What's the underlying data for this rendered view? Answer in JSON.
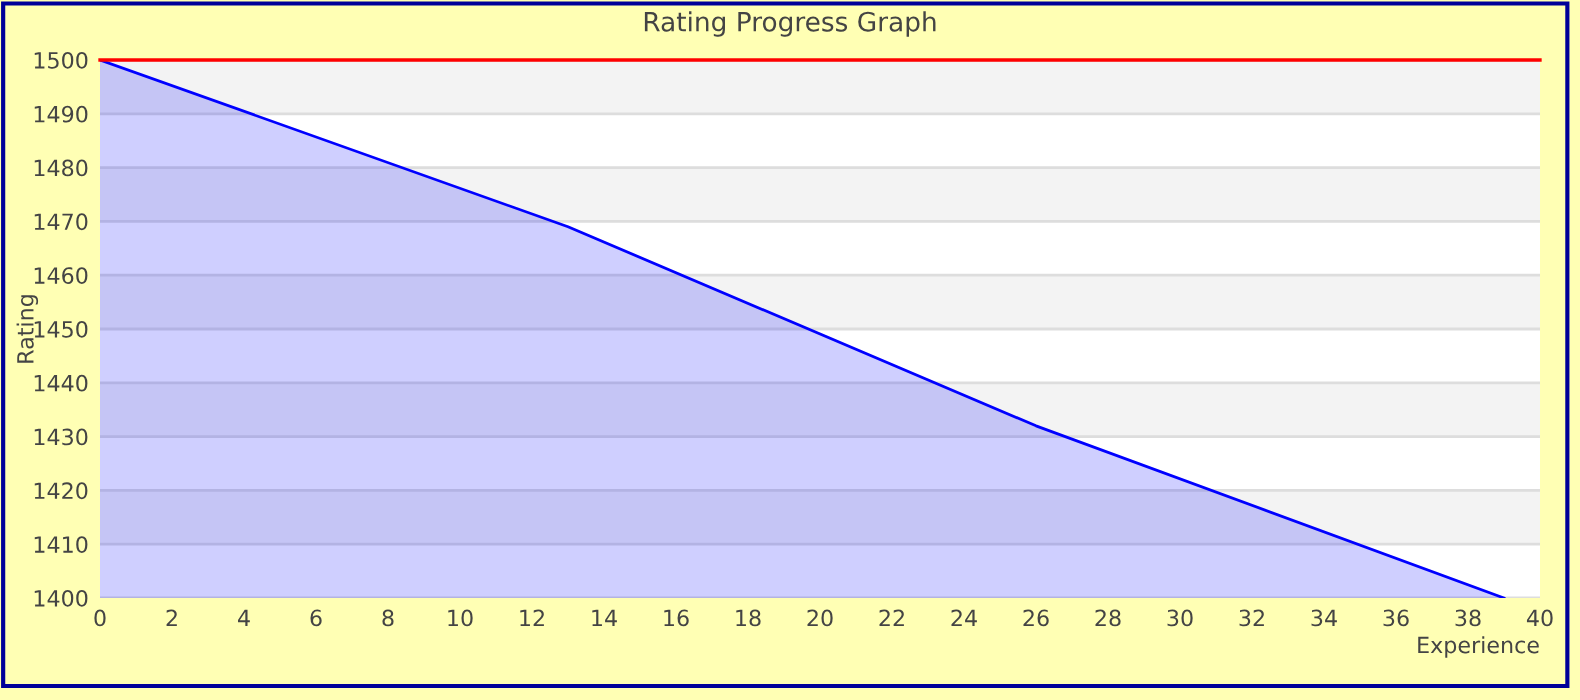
{
  "chart_data": {
    "type": "area",
    "title": "Rating Progress Graph",
    "xlabel": "Experience",
    "ylabel": "Rating",
    "x": [
      0,
      13,
      26,
      39
    ],
    "series": [
      {
        "color": "#0000ff",
        "values": [
          1500,
          1469,
          1432,
          1400
        ]
      }
    ],
    "xlim": [
      0,
      40
    ],
    "xticks": [
      0,
      2,
      4,
      6,
      8,
      10,
      12,
      14,
      16,
      18,
      20,
      22,
      24,
      26,
      28,
      30,
      32,
      34,
      36,
      38,
      40
    ],
    "ylim": [
      1400,
      1500
    ],
    "yticks": [
      1400,
      1410,
      1420,
      1430,
      1440,
      1450,
      1460,
      1470,
      1480,
      1490,
      1500
    ],
    "grid": "y",
    "ref_lines": [
      {
        "axis": "y",
        "value": 1500,
        "color": "#ff0000"
      }
    ]
  }
}
